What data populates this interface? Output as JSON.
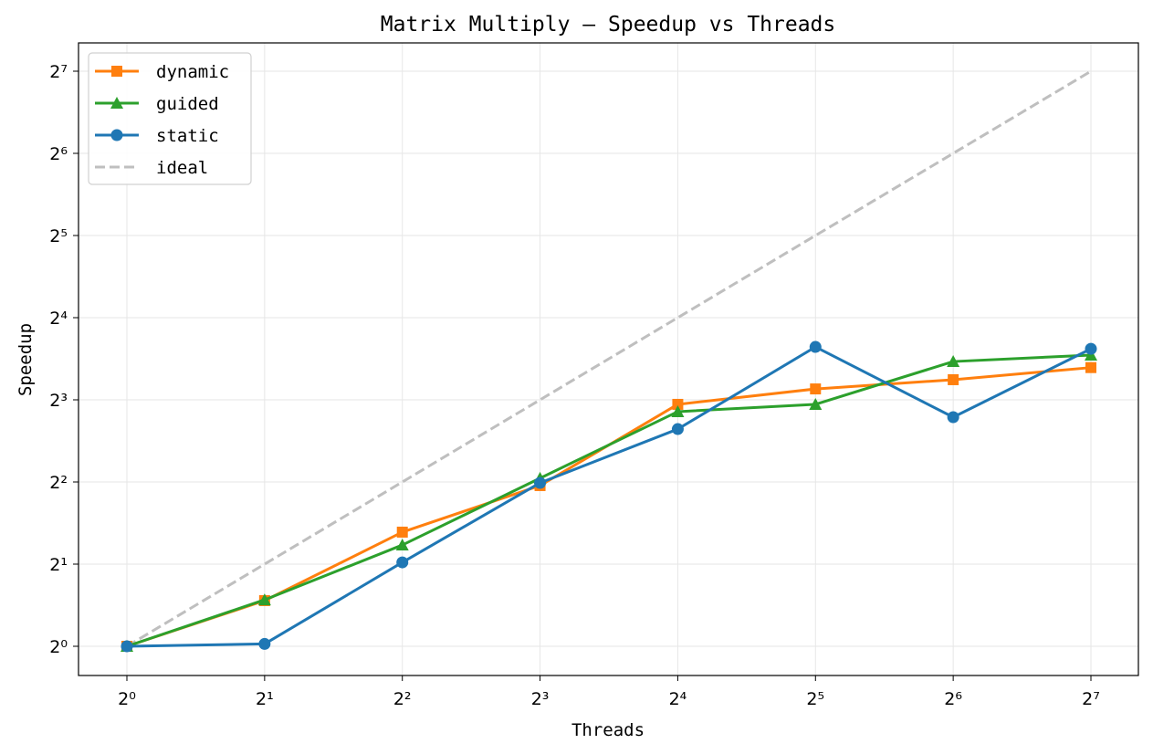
{
  "chart_data": {
    "type": "line",
    "title": "Matrix Multiply — Speedup vs Threads",
    "xlabel": "Threads",
    "ylabel": "Speedup",
    "xscale": "log2",
    "yscale": "log2",
    "x": [
      1,
      2,
      4,
      8,
      16,
      32,
      64,
      128
    ],
    "xticks": [
      1,
      2,
      4,
      8,
      16,
      32,
      64,
      128
    ],
    "xtick_labels": [
      "2⁰",
      "2¹",
      "2²",
      "2³",
      "2⁴",
      "2⁵",
      "2⁶",
      "2⁷"
    ],
    "yticks": [
      1,
      2,
      4,
      8,
      16,
      32,
      64,
      128
    ],
    "ytick_labels": [
      "2⁰",
      "2¹",
      "2²",
      "2³",
      "2⁴",
      "2⁵",
      "2⁶",
      "2⁷"
    ],
    "grid": true,
    "legend_position": "top-left",
    "series": [
      {
        "name": "dynamic",
        "color": "#ff7f0e",
        "marker": "square",
        "values": [
          1.0,
          1.47,
          2.62,
          3.88,
          7.7,
          8.77,
          9.48,
          10.5
        ]
      },
      {
        "name": "guided",
        "color": "#2ca02c",
        "marker": "triangle",
        "values": [
          1.0,
          1.48,
          2.35,
          4.13,
          7.24,
          7.7,
          11.05,
          11.67
        ]
      },
      {
        "name": "static",
        "color": "#1f77b4",
        "marker": "circle",
        "values": [
          1.0,
          1.02,
          2.03,
          3.97,
          6.25,
          12.5,
          6.91,
          12.3
        ]
      },
      {
        "name": "ideal",
        "color": "#bfbfbf",
        "marker": "none",
        "dashed": true,
        "values": [
          1,
          2,
          4,
          8,
          16,
          32,
          64,
          128
        ]
      }
    ]
  }
}
